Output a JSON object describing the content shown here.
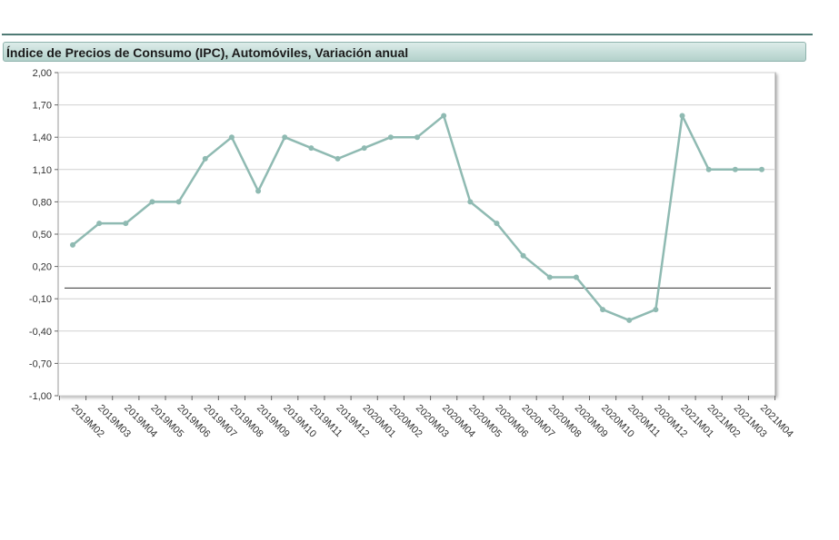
{
  "header": {
    "title": "Índice de Precios de Consumo (IPC), Automóviles, Variación anual"
  },
  "colors": {
    "line": "#8fbab2",
    "grid": "#d0d0d0",
    "zero_line": "#333333",
    "frame": "#9a9a9a",
    "title_rule": "#4f7a74"
  },
  "chart_data": {
    "type": "line",
    "title": "Índice de Precios de Consumo (IPC), Automóviles, Variación anual",
    "xlabel": "",
    "ylabel": "",
    "ylim": [
      -1.0,
      2.0
    ],
    "yticks": [
      "2,00",
      "1,70",
      "1,40",
      "1,10",
      "0,80",
      "0,50",
      "0,20",
      "-0,10",
      "-0,40",
      "-0,70",
      "-1,00"
    ],
    "ytick_values": [
      2.0,
      1.7,
      1.4,
      1.1,
      0.8,
      0.5,
      0.2,
      -0.1,
      -0.4,
      -0.7,
      -1.0
    ],
    "grid": true,
    "legend": "none",
    "reference_line_y": 0,
    "categories": [
      "2019M02",
      "2019M03",
      "2019M04",
      "2019M05",
      "2019M06",
      "2019M07",
      "2019M08",
      "2019M09",
      "2019M10",
      "2019M11",
      "2019M12",
      "2020M01",
      "2020M02",
      "2020M03",
      "2020M04",
      "2020M05",
      "2020M06",
      "2020M07",
      "2020M08",
      "2020M09",
      "2020M10",
      "2020M11",
      "2020M12",
      "2021M01",
      "2021M02",
      "2021M03",
      "2021M04"
    ],
    "values": [
      0.4,
      0.6,
      0.6,
      0.8,
      0.8,
      1.2,
      1.4,
      0.9,
      1.4,
      1.3,
      1.2,
      1.3,
      1.4,
      1.4,
      1.6,
      0.8,
      0.6,
      0.3,
      0.1,
      0.1,
      -0.2,
      -0.3,
      -0.2,
      1.6,
      1.1,
      1.1,
      1.1
    ]
  }
}
